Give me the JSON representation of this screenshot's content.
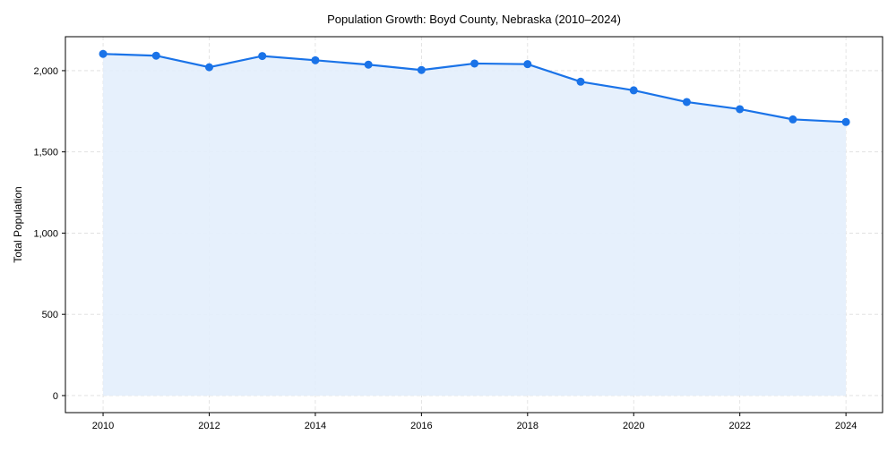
{
  "chart_data": {
    "type": "area",
    "title": "Population Growth: Boyd County, Nebraska (2010–2024)",
    "xlabel": "",
    "ylabel": "Total Population",
    "x": [
      2010,
      2011,
      2012,
      2013,
      2014,
      2015,
      2016,
      2017,
      2018,
      2019,
      2020,
      2021,
      2022,
      2023,
      2024
    ],
    "series": [
      {
        "name": "Total Population",
        "values": [
          2103,
          2092,
          2021,
          2090,
          2064,
          2037,
          2004,
          2044,
          2040,
          1932,
          1879,
          1807,
          1763,
          1700,
          1684
        ]
      }
    ],
    "xticks": [
      2010,
      2012,
      2014,
      2016,
      2018,
      2020,
      2022,
      2024
    ],
    "xtick_labels": [
      "2010",
      "2012",
      "2014",
      "2016",
      "2018",
      "2020",
      "2022",
      "2024"
    ],
    "yticks": [
      0,
      500,
      1000,
      1500,
      2000
    ],
    "ytick_labels": [
      "0",
      "500",
      "1,000",
      "1,500",
      "2,000"
    ],
    "xlim": [
      2009.29,
      2024.69
    ],
    "ylim": [
      -105,
      2209
    ],
    "grid": true,
    "colors": {
      "line": "#1a73e8",
      "fill": "#e3eefc",
      "grid": "#dddddd"
    }
  }
}
